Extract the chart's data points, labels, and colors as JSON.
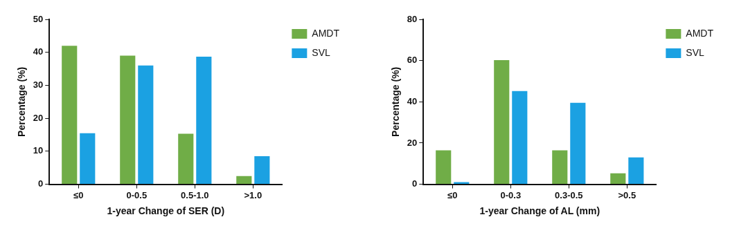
{
  "chart_data": [
    {
      "type": "bar",
      "xlabel": "1-year Change of SER (D)",
      "ylabel": "Percentage (%)",
      "categories": [
        "≤0",
        "0-0.5",
        "0.5-1.0",
        ">1.0"
      ],
      "series": [
        {
          "name": "AMDT",
          "color": "#70ad47",
          "values": [
            42,
            39,
            15.3,
            2.5
          ]
        },
        {
          "name": "SVL",
          "color": "#1ba1e2",
          "values": [
            15.5,
            36,
            38.7,
            8.5
          ]
        }
      ],
      "ylim": [
        0,
        50
      ],
      "yticks": [
        0,
        10,
        20,
        30,
        40,
        50
      ],
      "grid": false,
      "legend": "right"
    },
    {
      "type": "bar",
      "xlabel": "1-year Change of AL (mm)",
      "ylabel": "Percentage (%)",
      "categories": [
        "≤0",
        "0-0.3",
        "0.3-0.5",
        ">0.5"
      ],
      "series": [
        {
          "name": "AMDT",
          "color": "#70ad47",
          "values": [
            16.5,
            60.2,
            16.5,
            5.3
          ]
        },
        {
          "name": "SVL",
          "color": "#1ba1e2",
          "values": [
            1,
            45.2,
            39.5,
            13
          ]
        }
      ],
      "ylim": [
        0,
        80
      ],
      "yticks": [
        0,
        20,
        40,
        60,
        80
      ],
      "grid": false,
      "legend": "right"
    }
  ]
}
